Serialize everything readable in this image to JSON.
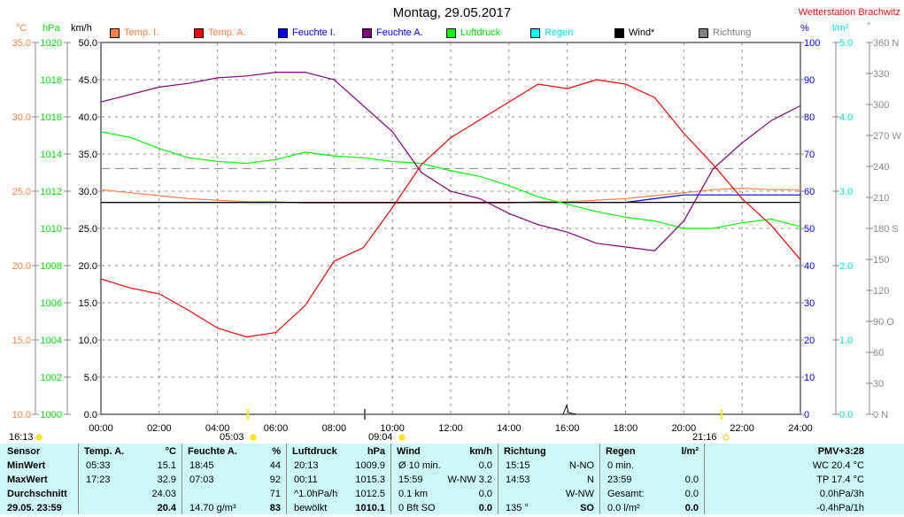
{
  "title": "Montag, 29.05.2017",
  "station": "Wetterstation Brachwitz",
  "units": {
    "temp": "°C",
    "press": "hPa",
    "wind": "km/h",
    "hum": "%",
    "rain": "l/m²",
    "dir": "°"
  },
  "legend": [
    {
      "label": "Temp. I.",
      "color": "#ff8040",
      "text": "#ff8040"
    },
    {
      "label": "Temp. A.",
      "color": "#ff0000",
      "text": "#ff8040"
    },
    {
      "label": "Feuchte I.",
      "color": "#0000ff",
      "text": "#0000ff"
    },
    {
      "label": "Feuchte A.",
      "color": "#800080",
      "text": "#0000ff"
    },
    {
      "label": "Luftdruck",
      "color": "#00ff00",
      "text": "#00dd00"
    },
    {
      "label": "Regen",
      "color": "#00ffff",
      "text": "#00e0e0"
    },
    {
      "label": "Wind*",
      "color": "#000000",
      "text": "#000000"
    },
    {
      "label": "Richtung",
      "color": "#808080",
      "text": "#808080"
    }
  ],
  "chart_data": {
    "type": "line",
    "x_ticks": [
      "00:00",
      "02:00",
      "04:00",
      "06:00",
      "08:00",
      "10:00",
      "12:00",
      "14:00",
      "16:00",
      "18:00",
      "20:00",
      "22:00",
      "24:00"
    ],
    "axes": {
      "temp": {
        "ticks": [
          "35.0",
          "30.0",
          "25.0",
          "20.0",
          "15.0",
          "10.0"
        ],
        "range": [
          10,
          35
        ]
      },
      "press": {
        "ticks": [
          "1020",
          "1018",
          "1016",
          "1014",
          "1012",
          "1010",
          "1008",
          "1006",
          "1004",
          "1002",
          "1000"
        ],
        "range": [
          1000,
          1020
        ]
      },
      "wind": {
        "ticks": [
          "50.0",
          "45.0",
          "40.0",
          "35.0",
          "30.0",
          "25.0",
          "20.0",
          "15.0",
          "10.0",
          "5.0",
          "0.0"
        ],
        "range": [
          0,
          50
        ]
      },
      "hum": {
        "ticks": [
          "100",
          "90",
          "80",
          "70",
          "60",
          "50",
          "40",
          "30",
          "20",
          "10",
          "0"
        ],
        "range": [
          0,
          100
        ]
      },
      "rain": {
        "ticks": [
          "5.0",
          "4.0",
          "3.0",
          "2.0",
          "1.0",
          "0.0"
        ],
        "range": [
          0,
          5
        ]
      },
      "dir": {
        "ticks": [
          "360 N",
          "330",
          "300",
          "270 W",
          "240",
          "210",
          "180 S",
          "150",
          "120",
          "90 O",
          "60",
          "30",
          "0 N"
        ],
        "range": [
          0,
          360
        ]
      }
    },
    "hours": [
      0,
      1,
      2,
      3,
      4,
      5,
      6,
      7,
      8,
      9,
      10,
      11,
      12,
      13,
      14,
      15,
      16,
      17,
      18,
      19,
      20,
      21,
      22,
      23,
      24
    ],
    "series": [
      {
        "name": "Temp. I.",
        "axis": "temp",
        "color": "#ff8040",
        "values": [
          25.1,
          24.9,
          24.7,
          24.5,
          24.4,
          24.3,
          24.3,
          24.2,
          24.2,
          24.2,
          24.2,
          24.2,
          24.2,
          24.2,
          24.2,
          24.3,
          24.3,
          24.4,
          24.5,
          24.7,
          24.9,
          25.1,
          25.2,
          25.1,
          25.1
        ]
      },
      {
        "name": "Feuchte I.",
        "axis": "hum",
        "color": "#0000ff",
        "values": [
          57,
          57,
          57,
          57,
          57,
          57,
          57,
          57,
          57,
          57,
          57,
          57,
          57,
          57,
          57,
          57,
          57,
          57,
          57,
          58,
          59,
          59,
          59,
          59,
          59
        ]
      },
      {
        "name": "Wind*",
        "axis": "wind",
        "color": "#000000",
        "values": [
          28.5,
          28.5,
          28.5,
          28.5,
          28.5,
          28.5,
          28.5,
          28.5,
          28.5,
          28.5,
          28.5,
          28.5,
          28.5,
          28.5,
          28.5,
          28.5,
          28.5,
          28.5,
          28.5,
          28.5,
          28.5,
          28.5,
          28.5,
          28.5,
          28.5
        ]
      },
      {
        "name": "Luftdruck",
        "axis": "press",
        "color": "#00ff00",
        "values": [
          1015.2,
          1014.9,
          1014.3,
          1013.8,
          1013.6,
          1013.5,
          1013.7,
          1014.1,
          1013.9,
          1013.8,
          1013.6,
          1013.5,
          1013.1,
          1012.8,
          1012.3,
          1011.7,
          1011.3,
          1010.9,
          1010.6,
          1010.4,
          1010.0,
          1010.0,
          1010.3,
          1010.5,
          1010.1
        ]
      },
      {
        "name": "Feuchte A.",
        "axis": "hum",
        "color": "#800080",
        "values": [
          84,
          86,
          88,
          89,
          90.5,
          91,
          92,
          92,
          90,
          83,
          76,
          65,
          60,
          58,
          54,
          51,
          49,
          46,
          45,
          44,
          52,
          66,
          73,
          79,
          83
        ]
      },
      {
        "name": "Temp. A.",
        "axis": "temp",
        "color": "#ff0000",
        "values": [
          19.1,
          18.5,
          18.1,
          17.0,
          15.8,
          15.2,
          15.5,
          17.3,
          20.3,
          21.2,
          23.9,
          26.8,
          28.6,
          29.8,
          31.0,
          32.2,
          31.9,
          32.5,
          32.2,
          31.3,
          28.9,
          26.8,
          24.5,
          22.7,
          20.4
        ]
      }
    ],
    "richtung_avg_deg": 238
  },
  "astro": [
    {
      "time": "16:13",
      "kind": "moon"
    },
    {
      "time": "05:03",
      "kind": "sunrise"
    },
    {
      "time": "09:04",
      "kind": "moonset"
    },
    {
      "time": "21:16",
      "kind": "sunset"
    }
  ],
  "table": {
    "sensor": [
      "Sensor",
      "MinWert",
      "MaxWert",
      "Durchschnitt",
      "29.05. 23:59"
    ],
    "temp": {
      "head": "Temp. A.",
      "unit": "°C",
      "rows": [
        [
          "05:33",
          "15.1"
        ],
        [
          "17:23",
          "32.9"
        ],
        [
          "",
          "24.03"
        ],
        [
          "",
          "20.4"
        ]
      ]
    },
    "hum": {
      "head": "Feuchte A.",
      "unit": "%",
      "rows": [
        [
          "18:45",
          "44"
        ],
        [
          "07:03",
          "92"
        ],
        [
          "",
          "71"
        ],
        [
          "14.70 g/m³",
          "83"
        ]
      ]
    },
    "press": {
      "head": "Luftdruck",
      "unit": "hPa",
      "rows": [
        [
          "20:13",
          "1009.9"
        ],
        [
          "00:11",
          "1015.3"
        ],
        [
          "^1.0hPa/h",
          "1012.5"
        ],
        [
          "bewölkt",
          "1010.1"
        ]
      ]
    },
    "wind": {
      "head": "Wind",
      "unit": "km/h",
      "rows": [
        [
          "Ø 10 min.",
          "0.0"
        ],
        [
          "15:59",
          "W-NW 3.2"
        ],
        [
          "0.1 km",
          "0.0"
        ],
        [
          "0 Bft SO",
          "0.0"
        ]
      ]
    },
    "dir": {
      "head": "Richtung",
      "unit": "",
      "rows": [
        [
          "15:15",
          "N-NO"
        ],
        [
          "14:53",
          "N"
        ],
        [
          "",
          "W-NW"
        ],
        [
          "135 °",
          "SO"
        ]
      ]
    },
    "rain": {
      "head": "Regen",
      "unit": "l/m²",
      "rows": [
        [
          "0 min.",
          ""
        ],
        [
          "23:59",
          "0.0"
        ],
        [
          "Gesamt:",
          "0.0"
        ],
        [
          "0.0 l/m²",
          "0.0"
        ]
      ]
    },
    "extra": [
      "PMV+3:28",
      "WC 20.4 °C",
      "TP 17.4 °C",
      "0.0hPa/3h",
      "-0.4hPa/1h"
    ]
  }
}
